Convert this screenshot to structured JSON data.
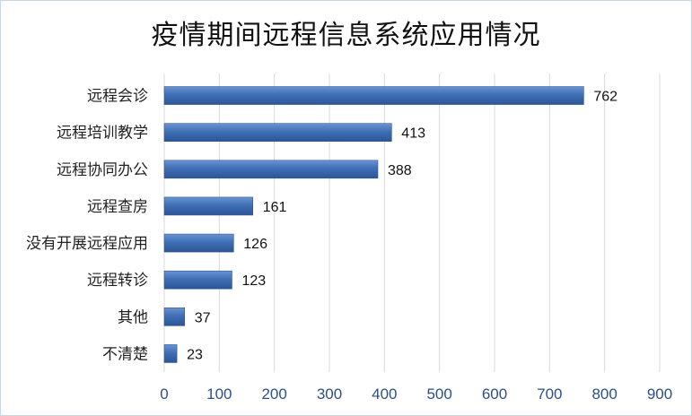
{
  "chart_data": {
    "type": "bar",
    "orientation": "horizontal",
    "title": "疫情期间远程信息系统应用情况",
    "categories": [
      "远程会诊",
      "远程培训教学",
      "远程协同办公",
      "远程查房",
      "没有开展远程应用",
      "远程转诊",
      "其他",
      "不清楚"
    ],
    "values": [
      762,
      413,
      388,
      161,
      126,
      123,
      37,
      23
    ],
    "xlim": [
      0,
      900
    ],
    "xticks": [
      0,
      100,
      200,
      300,
      400,
      500,
      600,
      700,
      800,
      900
    ],
    "grid": true,
    "legend": "none",
    "bar_color": "#3f6fb5",
    "bar_color_dark": "#2d5596",
    "bar_color_light": "#6a94d2"
  }
}
